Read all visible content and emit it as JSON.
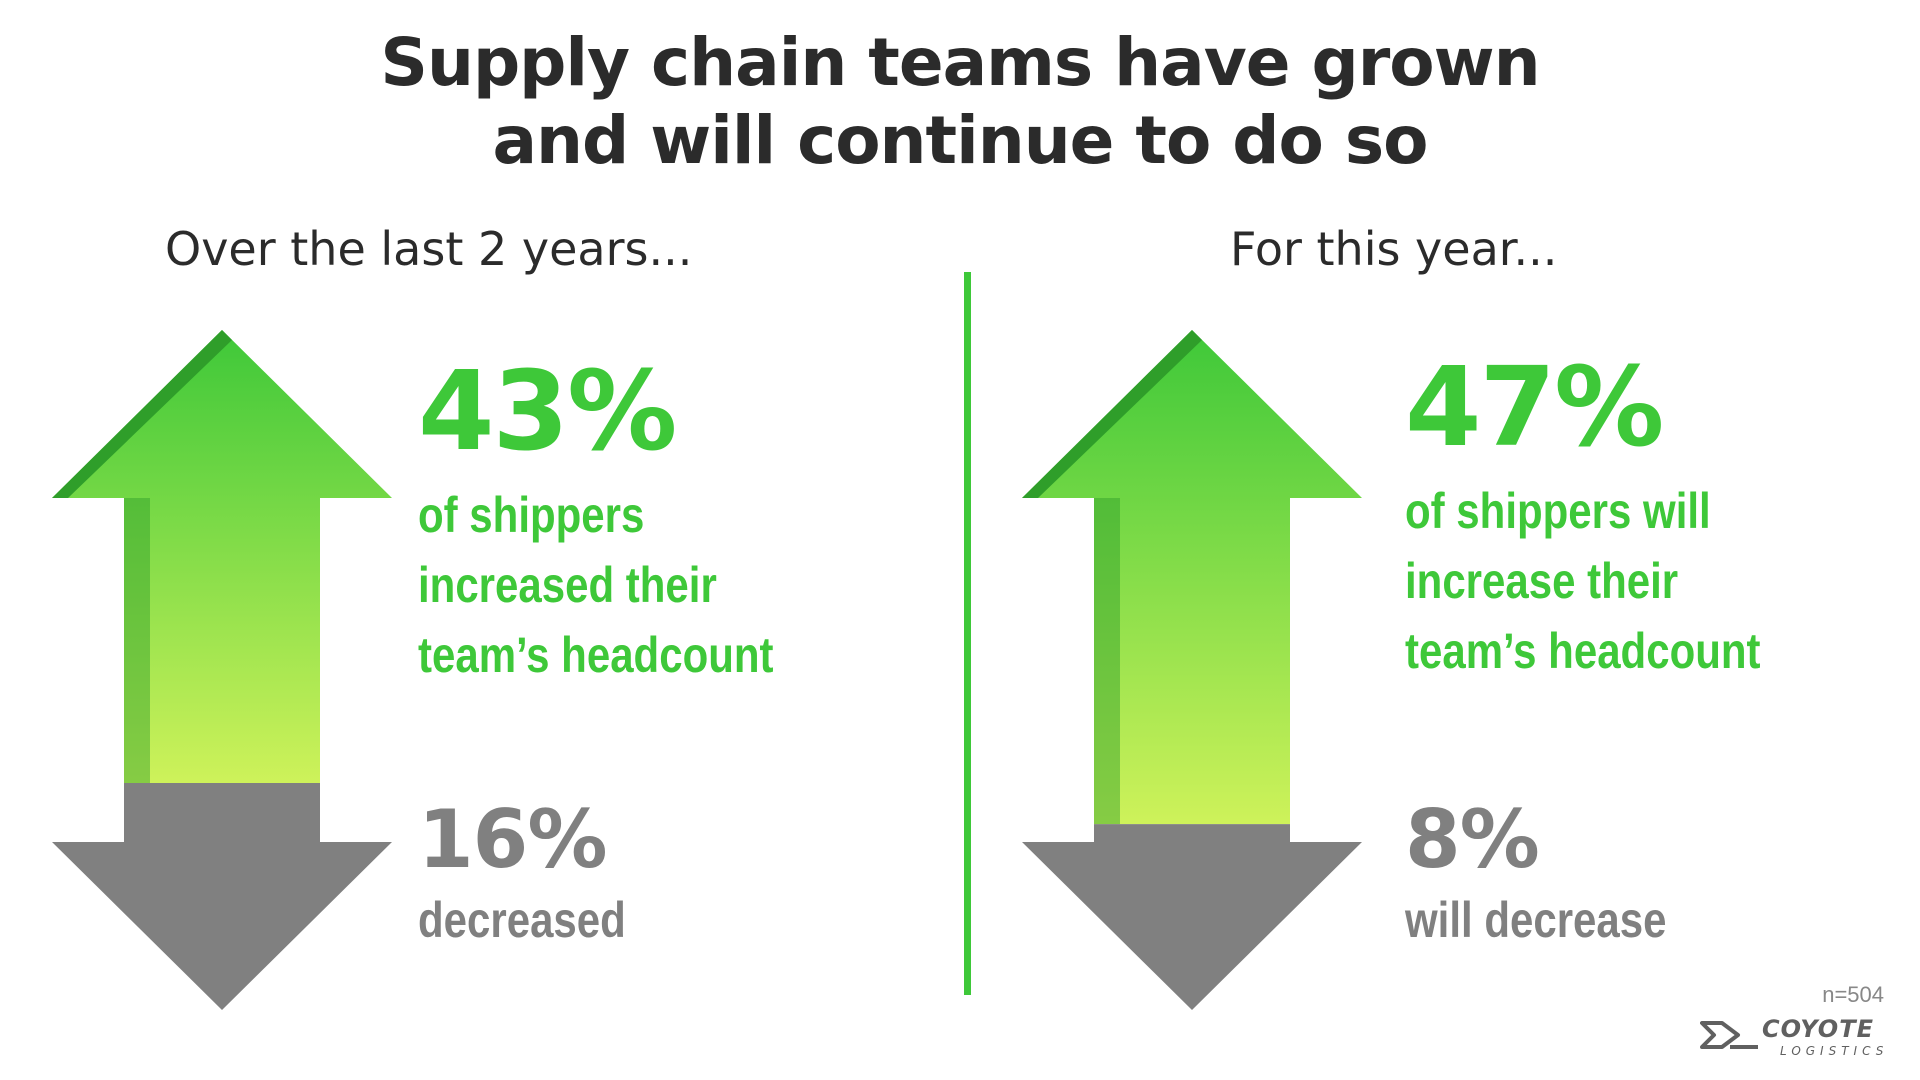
{
  "title_lines": [
    "Supply chain teams have grown",
    "and will continue to do so"
  ],
  "colors": {
    "increase": "#3ec839",
    "increase_light": "#cef25a",
    "increase_shadow": "#2f9e2a",
    "decrease": "#808080",
    "text": "#2b2b2b"
  },
  "icons": {
    "increase": "up-arrow-icon",
    "decrease": "down-arrow-icon"
  },
  "chart_data": [
    {
      "type": "bar",
      "subtitle": "Over the last 2 years...",
      "categories": [
        "increased",
        "decreased"
      ],
      "values": [
        43,
        16
      ],
      "unit": "%",
      "increase_label": "43%",
      "increase_text": [
        "of shippers",
        "increased their",
        "team’s headcount"
      ],
      "decrease_label": "16%",
      "decrease_text": "decreased"
    },
    {
      "type": "bar",
      "subtitle": "For this year...",
      "categories": [
        "will increase",
        "will decrease"
      ],
      "values": [
        47,
        8
      ],
      "unit": "%",
      "increase_label": "47%",
      "increase_text": [
        "of shippers will",
        "increase their",
        "team’s headcount"
      ],
      "decrease_label": "8%",
      "decrease_text": "will decrease"
    }
  ],
  "footnote": "n=504",
  "logo": {
    "word": "COYOTE",
    "sub": "LOGISTICS"
  }
}
